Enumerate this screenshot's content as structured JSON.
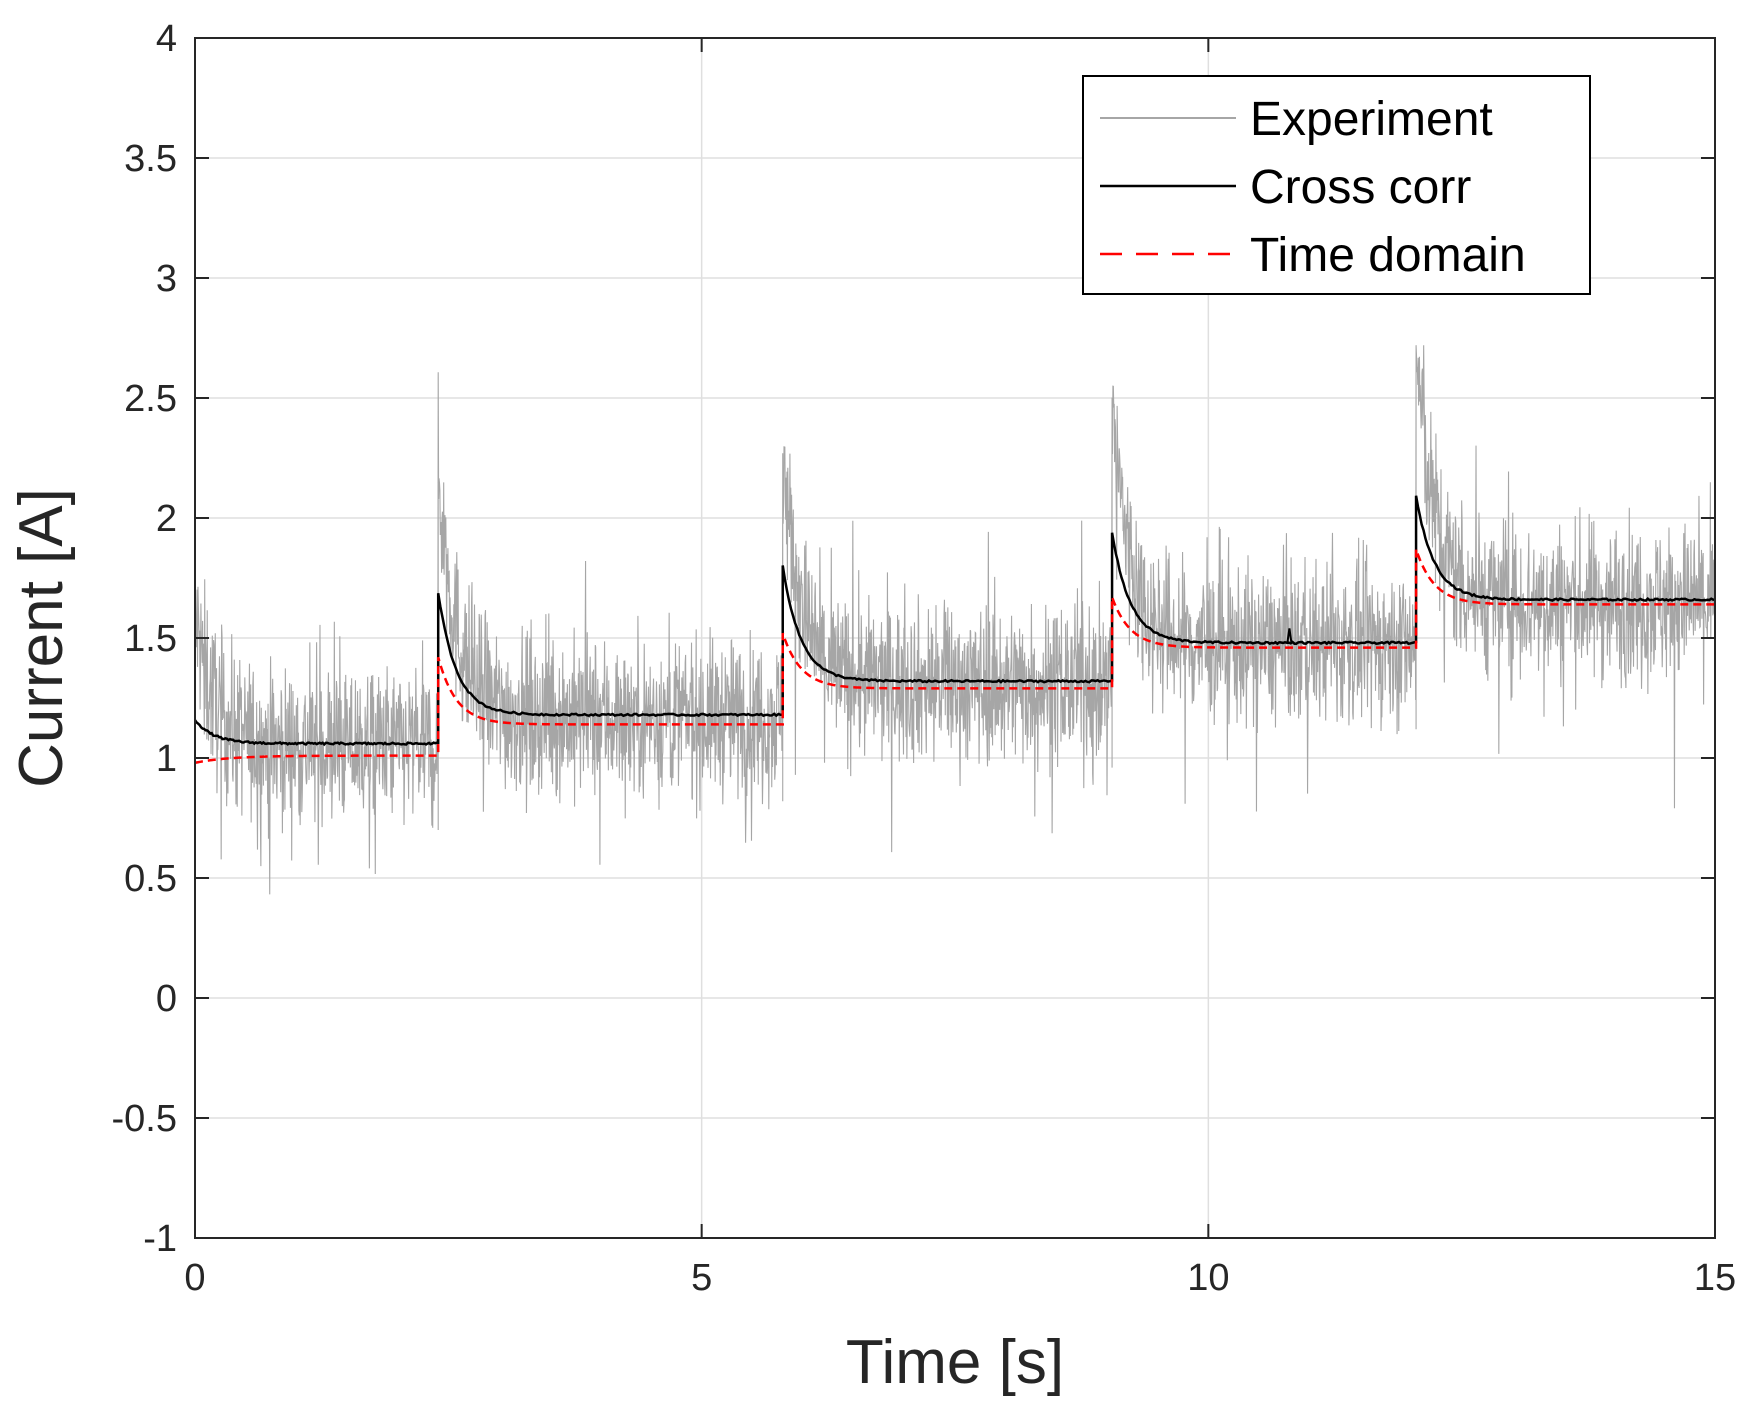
{
  "chart_data": {
    "type": "line",
    "title": "",
    "xlabel": "Time [s]",
    "ylabel": "Current [A]",
    "xlim": [
      0,
      15
    ],
    "ylim": [
      -1,
      4
    ],
    "xticks": [
      0,
      5,
      10,
      15
    ],
    "xtick_labels": [
      "0",
      "5",
      "10",
      "15"
    ],
    "yticks": [
      -1,
      -0.5,
      0,
      0.5,
      1,
      1.5,
      2,
      2.5,
      3,
      3.5,
      4
    ],
    "ytick_labels": [
      "-1",
      "-0.5",
      "0",
      "0.5",
      "1",
      "1.5",
      "2",
      "2.5",
      "3",
      "3.5",
      "4"
    ],
    "grid": true,
    "legend_position": "top-right",
    "step_times": [
      0,
      2.4,
      5.8,
      9.05,
      12.05
    ],
    "series": [
      {
        "name": "Experiment",
        "color": "#a6a6a6",
        "style": "solid",
        "description_values": "noisy measurement around step levels",
        "levels": [
          1.05,
          1.17,
          1.31,
          1.47,
          1.65
        ],
        "peaks": [
          1.6,
          2.2,
          2.27,
          2.48,
          2.7
        ],
        "noise_amplitude": 0.3
      },
      {
        "name": "Cross corr",
        "color": "#000000",
        "style": "solid",
        "levels": [
          1.06,
          1.18,
          1.32,
          1.48,
          1.66
        ],
        "peaks": [
          1.16,
          1.69,
          1.8,
          1.94,
          2.09
        ]
      },
      {
        "name": "Time domain",
        "color": "#ff0000",
        "style": "dashed",
        "levels": [
          1.01,
          1.14,
          1.29,
          1.46,
          1.64
        ],
        "peaks": [
          0.98,
          1.42,
          1.52,
          1.67,
          1.87
        ]
      }
    ],
    "legend": [
      "Experiment",
      "Cross corr",
      "Time domain"
    ]
  }
}
